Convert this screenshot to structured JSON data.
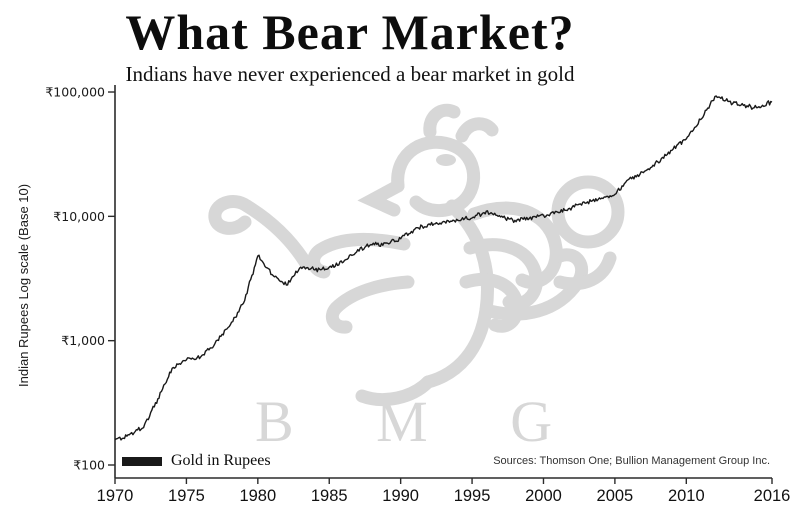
{
  "header": {
    "title": "What Bear Market?",
    "subtitle": "Indians have never experienced a bear market in gold"
  },
  "watermark": {
    "text": "B M G"
  },
  "legend": {
    "label": "Gold in Rupees"
  },
  "chart_data": {
    "type": "line",
    "title": "What Bear Market?",
    "subtitle": "Indians have never experienced a bear market in gold",
    "xlabel": "",
    "ylabel": "Indian Rupees Log scale (Base 10)",
    "y_scale": "log10",
    "ylim": [
      100,
      150000
    ],
    "xlim": [
      1970,
      2016
    ],
    "grid": false,
    "legend_position": "bottom-left",
    "x_ticks": [
      1970,
      1975,
      1980,
      1985,
      1990,
      1995,
      2000,
      2005,
      2010,
      2016
    ],
    "y_ticks": [
      {
        "label": "₹100,000",
        "value": 100000
      },
      {
        "label": "₹10,000",
        "value": 10000
      },
      {
        "label": "₹1,000",
        "value": 1000
      },
      {
        "label": "₹100",
        "value": 100
      }
    ],
    "series": [
      {
        "name": "Gold in Rupees",
        "color": "#191919",
        "x": [
          1970,
          1971,
          1972,
          1973,
          1974,
          1975,
          1976,
          1977,
          1978,
          1979,
          1980,
          1981,
          1982,
          1983,
          1984,
          1985,
          1986,
          1987,
          1988,
          1989,
          1990,
          1991,
          1992,
          1993,
          1994,
          1995,
          1996,
          1997,
          1998,
          1999,
          2000,
          2001,
          2002,
          2003,
          2004,
          2005,
          2006,
          2007,
          2008,
          2009,
          2010,
          2011,
          2012,
          2013,
          2014,
          2015,
          2016
        ],
        "values": [
          160,
          175,
          200,
          340,
          600,
          700,
          740,
          950,
          1300,
          2000,
          4800,
          3400,
          2800,
          3900,
          3700,
          3900,
          4300,
          5400,
          5900,
          6100,
          6600,
          7900,
          8700,
          9100,
          9300,
          9700,
          11000,
          9900,
          9300,
          9600,
          10200,
          10800,
          11800,
          12800,
          13800,
          15000,
          20000,
          22500,
          27500,
          34000,
          42000,
          60000,
          92000,
          84000,
          78000,
          75000,
          83000
        ]
      }
    ],
    "source_note": "Sources: Thomson One; Bullion Management Group Inc."
  }
}
